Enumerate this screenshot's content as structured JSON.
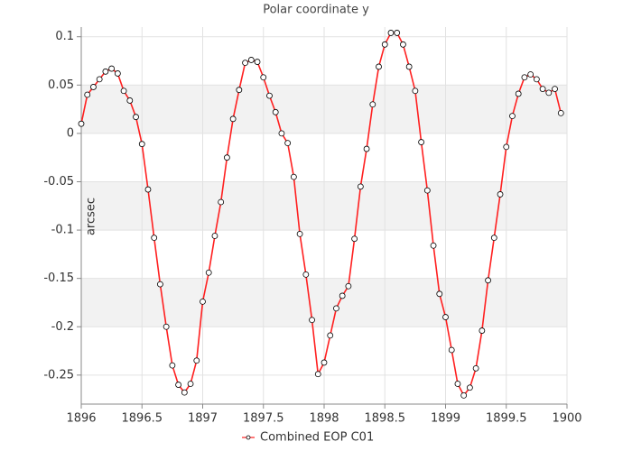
{
  "chart_data": {
    "type": "line",
    "title": "Polar coordinate y",
    "ylabel": "arcsec",
    "x": [
      1896.0,
      1896.05,
      1896.1,
      1896.15,
      1896.2,
      1896.25,
      1896.3,
      1896.35,
      1896.4,
      1896.45,
      1896.5,
      1896.55,
      1896.6,
      1896.65,
      1896.7,
      1896.75,
      1896.8,
      1896.85,
      1896.9,
      1896.95,
      1897.0,
      1897.05,
      1897.1,
      1897.15,
      1897.2,
      1897.25,
      1897.3,
      1897.35,
      1897.4,
      1897.45,
      1897.5,
      1897.55,
      1897.6,
      1897.65,
      1897.7,
      1897.75,
      1897.8,
      1897.85,
      1897.9,
      1897.95,
      1898.0,
      1898.05,
      1898.1,
      1898.15,
      1898.2,
      1898.25,
      1898.3,
      1898.35,
      1898.4,
      1898.45,
      1898.5,
      1898.55,
      1898.6,
      1898.65,
      1898.7,
      1898.75,
      1898.8,
      1898.85,
      1898.9,
      1898.95,
      1899.0,
      1899.05,
      1899.1,
      1899.15,
      1899.2,
      1899.25,
      1899.3,
      1899.35,
      1899.4,
      1899.45,
      1899.5,
      1899.55,
      1899.6,
      1899.65,
      1899.7,
      1899.75,
      1899.8,
      1899.85,
      1899.9,
      1899.95
    ],
    "series": [
      {
        "name": "Combined EOP C01",
        "color": "#ff2020",
        "marker_fill": "#ffffff",
        "marker_stroke": "#000000",
        "values": [
          0.01,
          0.04,
          0.048,
          0.056,
          0.064,
          0.067,
          0.062,
          0.044,
          0.034,
          0.017,
          -0.011,
          -0.058,
          -0.108,
          -0.156,
          -0.2,
          -0.24,
          -0.26,
          -0.268,
          -0.259,
          -0.235,
          -0.174,
          -0.144,
          -0.106,
          -0.071,
          -0.025,
          0.015,
          0.045,
          0.073,
          0.076,
          0.074,
          0.058,
          0.039,
          0.022,
          0.0,
          -0.01,
          -0.045,
          -0.104,
          -0.146,
          -0.193,
          -0.249,
          -0.237,
          -0.209,
          -0.181,
          -0.168,
          -0.158,
          -0.109,
          -0.055,
          -0.016,
          0.03,
          0.069,
          0.092,
          0.104,
          0.104,
          0.092,
          0.069,
          0.044,
          -0.009,
          -0.059,
          -0.116,
          -0.166,
          -0.19,
          -0.224,
          -0.259,
          -0.271,
          -0.263,
          -0.243,
          -0.204,
          -0.152,
          -0.108,
          -0.063,
          -0.014,
          0.018,
          0.041,
          0.058,
          0.061,
          0.056,
          0.046,
          0.042,
          0.046,
          0.021
        ]
      }
    ],
    "xlim": [
      1896,
      1900
    ],
    "xticks": [
      1896,
      1896.5,
      1897,
      1897.5,
      1898,
      1898.5,
      1899,
      1899.5,
      1900
    ],
    "ylim": [
      -0.28,
      0.11
    ],
    "yticks": [
      0.1,
      0.05,
      0,
      -0.05,
      -0.1,
      -0.15,
      -0.2,
      -0.25
    ],
    "grid": true,
    "alternate_bands": true,
    "band_color": "#f2f2f2",
    "legend": "bottom"
  }
}
